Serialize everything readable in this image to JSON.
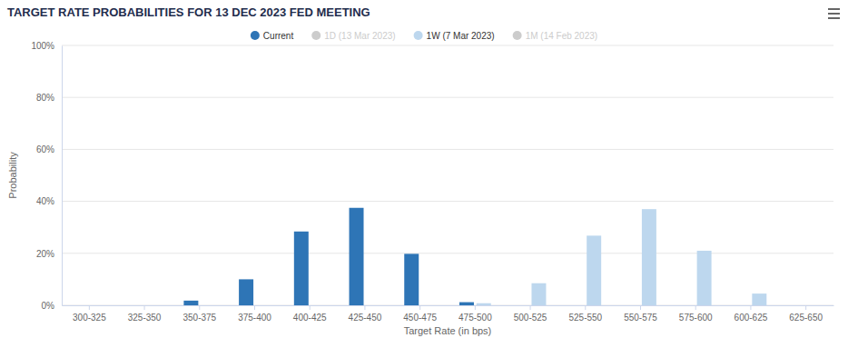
{
  "chart_data": {
    "type": "bar",
    "title": "TARGET RATE PROBABILITIES FOR 13 DEC 2023 FED MEETING",
    "x_label": "Target Rate (in bps)",
    "y_label": "Probability",
    "categories": [
      "300-325",
      "325-350",
      "350-375",
      "375-400",
      "400-425",
      "425-450",
      "450-475",
      "475-500",
      "500-525",
      "525-550",
      "550-575",
      "575-600",
      "600-625",
      "625-650"
    ],
    "series": [
      {
        "name": "Current",
        "color": "#2e75b6",
        "values": [
          0,
          0,
          1.8,
          10,
          28.4,
          37.5,
          19.8,
          1.2,
          0,
          0,
          0,
          0,
          0,
          0
        ]
      },
      {
        "name": "1D (13 Mar 2023)",
        "color": "#cccccc",
        "values": [
          null,
          null,
          null,
          null,
          null,
          null,
          null,
          null,
          null,
          null,
          null,
          null,
          null,
          null
        ]
      },
      {
        "name": "1W (7 Mar 2023)",
        "color": "#bdd7ee",
        "values": [
          0,
          0,
          0,
          0,
          0,
          0,
          0,
          0.8,
          8.5,
          26.8,
          37,
          21,
          4.5,
          0
        ]
      },
      {
        "name": "1M (14 Feb 2023)",
        "color": "#cccccc",
        "values": [
          null,
          null,
          null,
          null,
          null,
          null,
          null,
          null,
          null,
          null,
          null,
          null,
          null,
          null
        ]
      }
    ],
    "ylim": [
      0,
      100
    ],
    "yticks": [
      {
        "value": 0,
        "label": "0%"
      },
      {
        "value": 20,
        "label": "20%"
      },
      {
        "value": 40,
        "label": "40%"
      },
      {
        "value": 60,
        "label": "60%"
      },
      {
        "value": 80,
        "label": "80%"
      },
      {
        "value": 100,
        "label": "100%"
      }
    ],
    "grid": true,
    "legend": "top"
  }
}
